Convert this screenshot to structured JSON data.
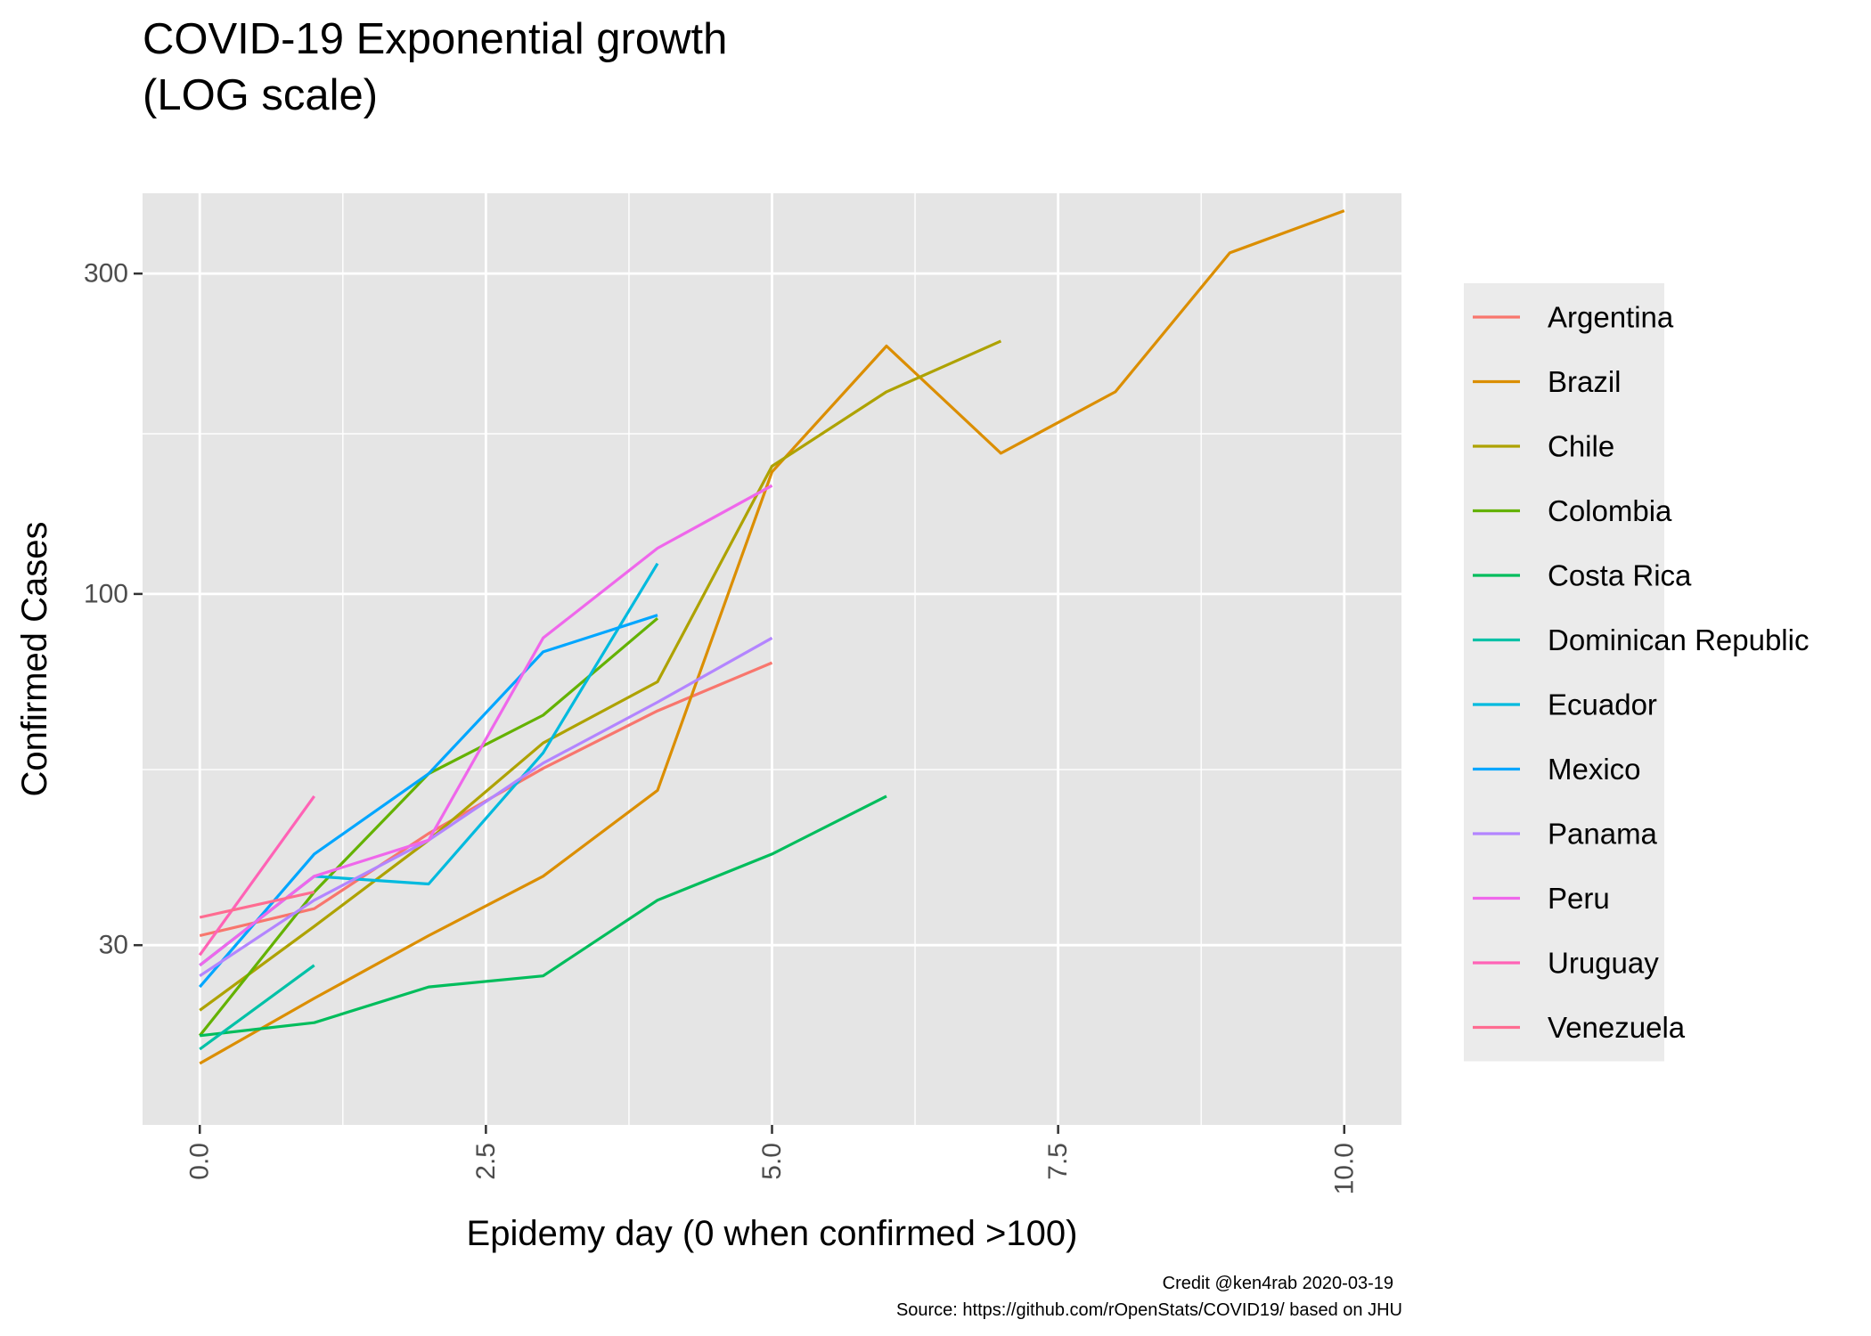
{
  "chart_data": {
    "type": "line",
    "title": [
      "COVID-19 Exponential growth",
      "(LOG scale)"
    ],
    "xlabel": "Epidemy day (0 when confirmed >100)",
    "ylabel": "Confirmed Cases",
    "x_scale": "linear",
    "y_scale": "log",
    "xlim": [
      -0.5,
      10.5
    ],
    "ylim": [
      16.2,
      395
    ],
    "x_ticks": [
      0.0,
      2.5,
      5.0,
      7.5,
      10.0
    ],
    "x_tick_labels": [
      "0.0",
      "2.5",
      "5.0",
      "7.5",
      "10.0"
    ],
    "x_minor_ticks": [
      1.25,
      3.75,
      6.25,
      8.75
    ],
    "y_ticks": [
      30,
      100,
      300
    ],
    "y_tick_labels": [
      "30",
      "100",
      "300"
    ],
    "y_minor_ticks": [
      54.77,
      173.2
    ],
    "grid": true,
    "panel_background": "#e5e5e5",
    "legend_position": "right",
    "series": [
      {
        "name": "Argentina",
        "color": "#F8766D",
        "x": [
          0,
          1,
          2,
          3,
          4,
          5
        ],
        "y": [
          31,
          34,
          44,
          55,
          67,
          79
        ]
      },
      {
        "name": "Brazil",
        "color": "#DB8E00",
        "x": [
          0,
          1,
          2,
          3,
          4,
          5,
          6,
          7,
          8,
          9,
          10
        ],
        "y": [
          20,
          25,
          31,
          38,
          51,
          152,
          234,
          162,
          200,
          322,
          372
        ]
      },
      {
        "name": "Chile",
        "color": "#AEA200",
        "x": [
          0,
          1,
          2,
          3,
          4,
          5,
          6,
          7
        ],
        "y": [
          24,
          32,
          43,
          60,
          74,
          155,
          200,
          238
        ]
      },
      {
        "name": "Colombia",
        "color": "#64B200",
        "x": [
          0,
          1,
          2,
          3,
          4
        ],
        "y": [
          22,
          36,
          54,
          66,
          92
        ]
      },
      {
        "name": "Costa Rica",
        "color": "#00BD5C",
        "x": [
          0,
          1,
          2,
          3,
          4,
          5,
          6
        ],
        "y": [
          22,
          23,
          26,
          27,
          35,
          41,
          50
        ]
      },
      {
        "name": "Dominican Republic",
        "color": "#00C1A7",
        "x": [
          0,
          1
        ],
        "y": [
          21,
          28
        ]
      },
      {
        "name": "Ecuador",
        "color": "#00BADE",
        "x": [
          0,
          1,
          2,
          3,
          4
        ],
        "y": [
          28,
          38,
          37,
          58,
          111
        ]
      },
      {
        "name": "Mexico",
        "color": "#00A6FF",
        "x": [
          0,
          1,
          2,
          3,
          4
        ],
        "y": [
          26,
          41,
          54,
          82,
          93
        ]
      },
      {
        "name": "Panama",
        "color": "#B385FF",
        "x": [
          0,
          1,
          2,
          3,
          4,
          5
        ],
        "y": [
          27,
          35,
          43,
          56,
          69,
          86
        ]
      },
      {
        "name": "Peru",
        "color": "#EF67EB",
        "x": [
          0,
          1,
          2,
          3,
          4,
          5
        ],
        "y": [
          28,
          38,
          43,
          86,
          117,
          145
        ]
      },
      {
        "name": "Uruguay",
        "color": "#FF63B6",
        "x": [
          0,
          1
        ],
        "y": [
          29,
          50
        ]
      },
      {
        "name": "Venezuela",
        "color": "#FF6C91",
        "x": [
          0,
          1
        ],
        "y": [
          33,
          36
        ]
      }
    ],
    "caption": [
      "Credit @ken4rab 2020-03-19",
      "Source: https://github.com/rOpenStats/COVID19/ based on JHU"
    ]
  }
}
